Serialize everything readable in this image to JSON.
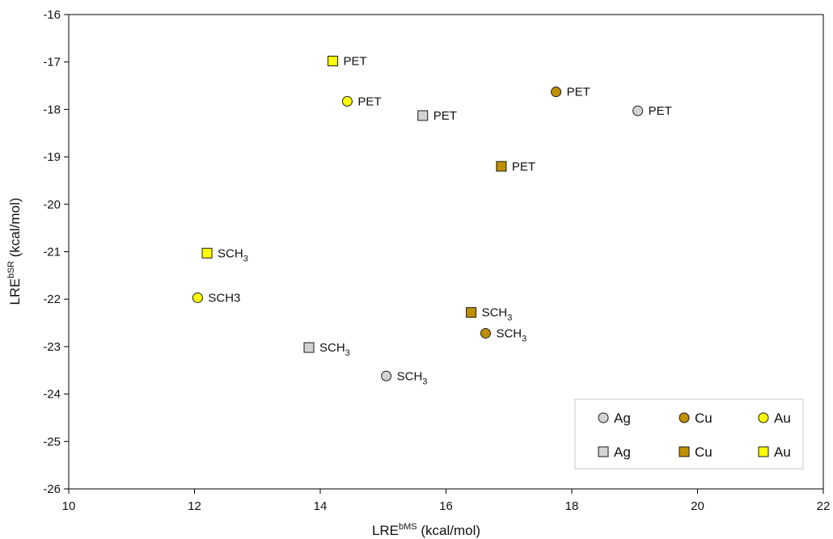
{
  "chart_data": {
    "type": "scatter",
    "xlabel": {
      "base": "LRE",
      "sup": "bMS",
      "unit": " (kcal/mol)"
    },
    "ylabel": {
      "base": "LRE",
      "sup": "bSR",
      "unit": " (kcal/mol)"
    },
    "xlim": [
      10,
      22
    ],
    "ylim": [
      -26,
      -16
    ],
    "xticks": [
      10,
      12,
      14,
      16,
      18,
      20,
      22
    ],
    "yticks": [
      -16,
      -17,
      -18,
      -19,
      -20,
      -21,
      -22,
      -23,
      -24,
      -25,
      -26
    ],
    "grid": false,
    "legend_position": "bottom-right",
    "colors": {
      "Ag": "#d3d3d3",
      "Cu": "#bf8f00",
      "Au": "#ffff00"
    },
    "series": [
      {
        "name": "Ag",
        "marker": "circle",
        "color": "#d3d3d3",
        "points": [
          {
            "x": 19.05,
            "y": -18.03,
            "label": "PET",
            "sub": ""
          },
          {
            "x": 15.05,
            "y": -23.62,
            "label": "SCH",
            "sub": "3"
          }
        ]
      },
      {
        "name": "Cu",
        "marker": "circle",
        "color": "#bf8f00",
        "points": [
          {
            "x": 17.75,
            "y": -17.63,
            "label": "PET",
            "sub": ""
          },
          {
            "x": 16.63,
            "y": -22.72,
            "label": "SCH",
            "sub": "3"
          }
        ]
      },
      {
        "name": "Au",
        "marker": "circle",
        "color": "#ffff00",
        "points": [
          {
            "x": 14.43,
            "y": -17.83,
            "label": "PET",
            "sub": ""
          },
          {
            "x": 12.05,
            "y": -21.97,
            "label": "SCH3",
            "sub": ""
          }
        ]
      },
      {
        "name": "Ag",
        "marker": "square",
        "color": "#d3d3d3",
        "points": [
          {
            "x": 15.63,
            "y": -18.13,
            "label": "PET",
            "sub": ""
          },
          {
            "x": 13.82,
            "y": -23.02,
            "label": "SCH",
            "sub": "3"
          }
        ]
      },
      {
        "name": "Cu",
        "marker": "square",
        "color": "#bf8f00",
        "points": [
          {
            "x": 16.88,
            "y": -19.2,
            "label": "PET",
            "sub": ""
          },
          {
            "x": 16.4,
            "y": -22.28,
            "label": "SCH",
            "sub": "3"
          }
        ]
      },
      {
        "name": "Au",
        "marker": "square",
        "color": "#ffff00",
        "points": [
          {
            "x": 14.2,
            "y": -16.98,
            "label": "PET",
            "sub": ""
          },
          {
            "x": 12.2,
            "y": -21.03,
            "label": "SCH",
            "sub": "3"
          }
        ]
      }
    ]
  }
}
